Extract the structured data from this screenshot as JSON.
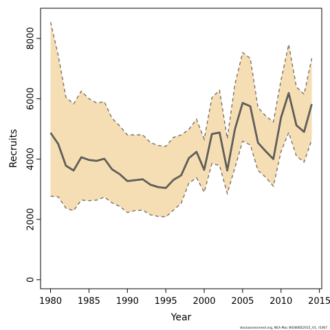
{
  "chart_data": {
    "type": "area",
    "xlabel": "Year",
    "ylabel": "Recruits",
    "xlim": [
      1978.7,
      2015.3
    ],
    "ylim": [
      -300,
      9000
    ],
    "xticks": [
      1980,
      1985,
      1990,
      1995,
      2000,
      2005,
      2010,
      2015
    ],
    "yticks": [
      0,
      2000,
      4000,
      6000,
      8000
    ],
    "grid": false,
    "legend": "none",
    "colors": {
      "band": "#f5deb3",
      "band_edge": "#7a6f66",
      "line": "#3d3d3d"
    },
    "x": [
      1980,
      1981,
      1982,
      1983,
      1984,
      1985,
      1986,
      1987,
      1988,
      1989,
      1990,
      1991,
      1992,
      1993,
      1994,
      1995,
      1996,
      1997,
      1998,
      1999,
      2000,
      2001,
      2002,
      2003,
      2004,
      2005,
      2006,
      2007,
      2008,
      2009,
      2010,
      2011,
      2012,
      2013,
      2014
    ],
    "series": [
      {
        "role": "estimate",
        "values": [
          4870,
          4500,
          3780,
          3620,
          4060,
          3970,
          3940,
          4010,
          3660,
          3500,
          3270,
          3300,
          3330,
          3150,
          3070,
          3040,
          3310,
          3460,
          4030,
          4240,
          3640,
          4830,
          4880,
          3620,
          4990,
          5860,
          5750,
          4540,
          4260,
          4000,
          5380,
          6190,
          5120,
          4900,
          5820
        ]
      },
      {
        "role": "upper",
        "values": [
          8540,
          7440,
          6050,
          5830,
          6250,
          6000,
          5860,
          5900,
          5350,
          5100,
          4800,
          4800,
          4800,
          4550,
          4450,
          4420,
          4720,
          4800,
          4980,
          5320,
          4660,
          6040,
          6280,
          4680,
          6480,
          7530,
          7340,
          5710,
          5430,
          5230,
          6620,
          7800,
          6390,
          6150,
          7340
        ]
      },
      {
        "role": "lower",
        "values": [
          2770,
          2750,
          2370,
          2290,
          2640,
          2620,
          2640,
          2740,
          2550,
          2430,
          2230,
          2290,
          2310,
          2150,
          2100,
          2080,
          2310,
          2530,
          3200,
          3380,
          2900,
          3850,
          3790,
          2860,
          3710,
          4590,
          4470,
          3620,
          3400,
          3100,
          4250,
          4880,
          4100,
          3900,
          4640
        ]
      }
    ]
  },
  "footnote": "stockassessment.org, NEA Mac WGWIDE2015_V1, r5367"
}
